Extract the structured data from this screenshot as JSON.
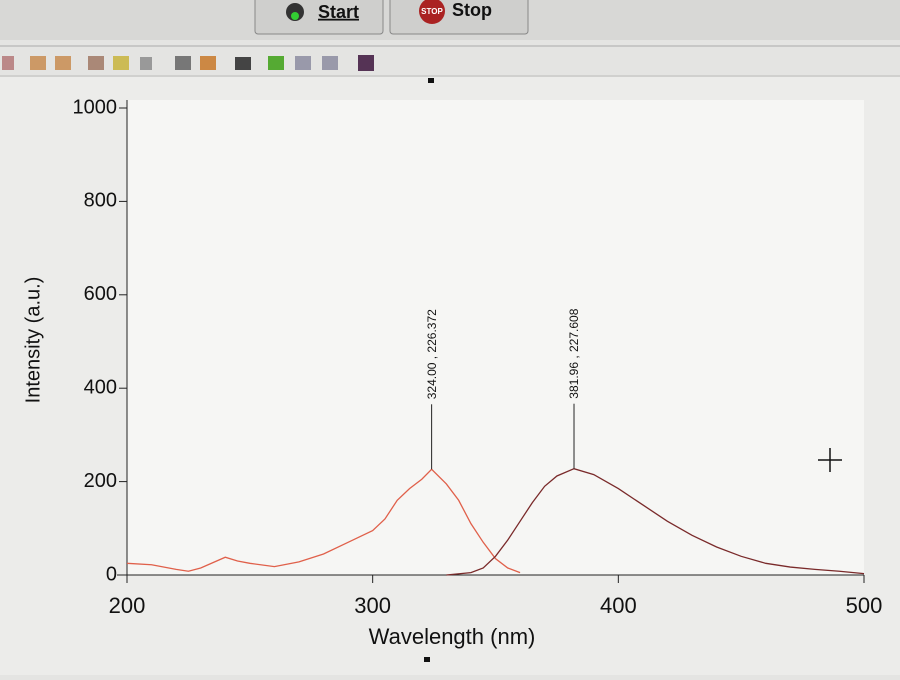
{
  "toolbar": {
    "start": "Start",
    "stop_icon": "STOP",
    "stop": "Stop"
  },
  "chart_data": {
    "type": "line",
    "xlabel": "Wavelength (nm)",
    "ylabel": "Intensity (a.u.)",
    "xlim": [
      200,
      500
    ],
    "xticks": [
      200,
      300,
      400,
      500
    ],
    "ylim": [
      0,
      1000
    ],
    "yticks": [
      0,
      200,
      400,
      600,
      800,
      1000
    ],
    "series": [
      {
        "color": "#e0604a",
        "x": [
          200,
          210,
          220,
          225,
          230,
          240,
          245,
          250,
          260,
          270,
          280,
          290,
          300,
          305,
          310,
          315,
          320,
          324,
          330,
          335,
          340,
          345,
          350,
          355,
          360
        ],
        "values": [
          25,
          22,
          12,
          8,
          15,
          38,
          30,
          25,
          18,
          28,
          45,
          70,
          95,
          120,
          160,
          185,
          205,
          226.372,
          195,
          160,
          110,
          70,
          35,
          15,
          5
        ]
      },
      {
        "color": "#7a2a2a",
        "x": [
          330,
          340,
          345,
          350,
          355,
          360,
          365,
          370,
          375,
          381.96,
          390,
          400,
          410,
          420,
          430,
          440,
          450,
          460,
          470,
          480,
          490,
          500
        ],
        "values": [
          0,
          5,
          15,
          40,
          75,
          115,
          155,
          190,
          212,
          227.608,
          215,
          185,
          150,
          115,
          85,
          60,
          40,
          25,
          17,
          12,
          8,
          3
        ]
      }
    ],
    "annotations": [
      {
        "label": "324.00 , 226.372",
        "x": 324,
        "y": 226.372
      },
      {
        "label": "381.96 , 227.608",
        "x": 381.96,
        "y": 227.608
      }
    ]
  }
}
